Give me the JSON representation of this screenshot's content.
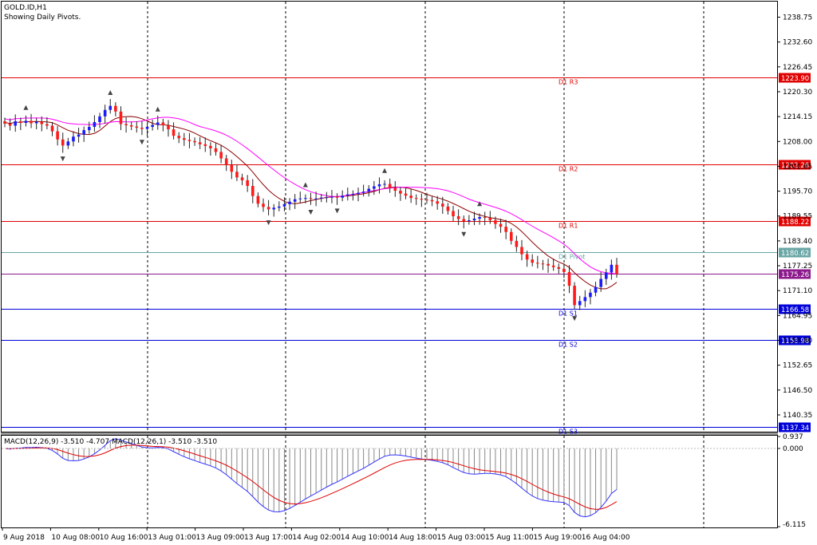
{
  "header": {
    "symbol": "GOLD.ID,H1",
    "subtitle": "Showing Daily Pivots."
  },
  "chart_data": {
    "type": "candlestick",
    "price_axis": {
      "ylim": [
        1136.2,
        1242.6
      ],
      "ticks": [
        "1238.75",
        "1232.60",
        "1226.45",
        "1220.30",
        "1214.15",
        "1208.00",
        "1201.85",
        "1195.70",
        "1189.55",
        "1183.40",
        "1177.25",
        "1171.10",
        "1164.95",
        "1158.80",
        "1152.65",
        "1146.50",
        "1140.35"
      ]
    },
    "time_axis": {
      "labels": [
        "9 Aug 2018",
        "10 Aug 08:00",
        "10 Aug 16:00",
        "13 Aug 01:00",
        "13 Aug 09:00",
        "13 Aug 17:00",
        "14 Aug 02:00",
        "14 Aug 10:00",
        "14 Aug 18:00",
        "15 Aug 03:00",
        "15 Aug 11:00",
        "15 Aug 19:00",
        "16 Aug 04:00"
      ],
      "bars_per_label": 8,
      "total_slots": 160
    },
    "pivots": [
      {
        "name": "D1 R3",
        "value": "1223.90",
        "kind": "resistance"
      },
      {
        "name": "D1 R2",
        "value": "1202.26",
        "kind": "resistance"
      },
      {
        "name": "D1 R1",
        "value": "1188.22",
        "kind": "resistance"
      },
      {
        "name": "D1 Pivot",
        "value": "1180.62",
        "kind": "pivot"
      },
      {
        "name": "D1 S1",
        "value": "1166.58",
        "kind": "support"
      },
      {
        "name": "D1 S2",
        "value": "1158.98",
        "kind": "support"
      },
      {
        "name": "D1 S3",
        "value": "1137.34",
        "kind": "support"
      }
    ],
    "current_price": "1175.26",
    "ohlc_close": [
      1212.4,
      1211.9,
      1213.0,
      1212.6,
      1213.1,
      1212.5,
      1212.9,
      1212.3,
      1211.9,
      1210.5,
      1208.5,
      1207.0,
      1208.0,
      1209.2,
      1209.7,
      1210.8,
      1211.6,
      1212.8,
      1214.2,
      1215.8,
      1216.8,
      1215.4,
      1212.3,
      1212.0,
      1211.7,
      1211.4,
      1211.1,
      1211.6,
      1212.1,
      1212.7,
      1212.0,
      1211.0,
      1209.4,
      1208.8,
      1208.4,
      1208.1,
      1207.8,
      1207.3,
      1206.9,
      1206.3,
      1205.4,
      1203.8,
      1202.2,
      1200.5,
      1199.1,
      1198.4,
      1197.0,
      1194.5,
      1192.6,
      1191.8,
      1191.2,
      1191.6,
      1191.9,
      1192.5,
      1193.1,
      1193.7,
      1193.9,
      1194.0,
      1193.8,
      1193.9,
      1194.1,
      1194.2,
      1194.3,
      1194.1,
      1194.6,
      1194.9,
      1195.0,
      1195.3,
      1195.6,
      1196.3,
      1196.9,
      1197.4,
      1197.5,
      1196.5,
      1195.8,
      1195.1,
      1194.6,
      1194.0,
      1193.8,
      1193.6,
      1193.5,
      1193.2,
      1192.6,
      1191.9,
      1190.8,
      1189.5,
      1188.8,
      1188.3,
      1188.5,
      1188.9,
      1189.3,
      1189.1,
      1188.5,
      1187.6,
      1186.9,
      1185.6,
      1183.4,
      1181.9,
      1180.1,
      1178.8,
      1178.0,
      1177.8,
      1177.7,
      1177.3,
      1176.9,
      1176.5,
      1175.7,
      1172.3,
      1167.5,
      1168.5,
      1169.5,
      1170.6,
      1172.0,
      1174.0,
      1175.6,
      1177.5,
      1175.2
    ],
    "ohlc_open": [
      1213.0,
      1212.4,
      1211.9,
      1213.0,
      1212.6,
      1213.1,
      1212.5,
      1212.9,
      1212.3,
      1211.9,
      1210.5,
      1208.5,
      1207.0,
      1208.0,
      1209.2,
      1209.7,
      1210.8,
      1211.6,
      1212.8,
      1214.2,
      1215.8,
      1216.8,
      1215.4,
      1212.3,
      1212.0,
      1211.7,
      1211.4,
      1211.1,
      1211.6,
      1212.1,
      1212.7,
      1212.0,
      1211.0,
      1209.4,
      1208.8,
      1208.4,
      1208.1,
      1207.8,
      1207.3,
      1206.9,
      1206.3,
      1205.4,
      1203.8,
      1202.2,
      1200.5,
      1199.1,
      1198.4,
      1197.0,
      1194.5,
      1192.6,
      1191.8,
      1191.2,
      1191.6,
      1191.9,
      1192.5,
      1193.1,
      1193.7,
      1193.9,
      1194.0,
      1193.8,
      1193.9,
      1194.1,
      1194.2,
      1194.3,
      1194.1,
      1194.6,
      1194.9,
      1195.0,
      1195.3,
      1195.6,
      1196.3,
      1196.9,
      1197.4,
      1197.5,
      1196.5,
      1195.8,
      1195.1,
      1194.6,
      1194.0,
      1193.8,
      1193.6,
      1193.5,
      1193.2,
      1192.6,
      1191.9,
      1190.8,
      1189.5,
      1188.8,
      1188.3,
      1188.5,
      1188.9,
      1189.3,
      1189.1,
      1188.5,
      1187.6,
      1186.9,
      1185.6,
      1183.4,
      1181.9,
      1180.1,
      1178.8,
      1178.0,
      1177.8,
      1177.7,
      1177.3,
      1176.9,
      1176.5,
      1175.7,
      1172.3,
      1167.5,
      1168.5,
      1169.5,
      1170.6,
      1172.0,
      1174.0,
      1175.6,
      1177.5
    ],
    "macd": {
      "label": "MACD(12,26,9) -3.510 -4.707 MACD(12,26,1) -3.510 -3.510",
      "ylim": [
        -6.115,
        0.937
      ],
      "ticks": [
        "0.937",
        "0.000",
        "-6.115"
      ]
    }
  },
  "colors": {
    "grid": "#000000",
    "resistance": "#e00000",
    "support": "#0000d8",
    "pivot": "#6aa6a6",
    "price_line": "#8c1a8c",
    "bull": "#1a1aff",
    "bear": "#ff1a1a",
    "ma_fast": "#8b0000",
    "ma_slow": "#ff00ff",
    "macd_line": "#3333ff",
    "macd_signal": "#e00000"
  }
}
